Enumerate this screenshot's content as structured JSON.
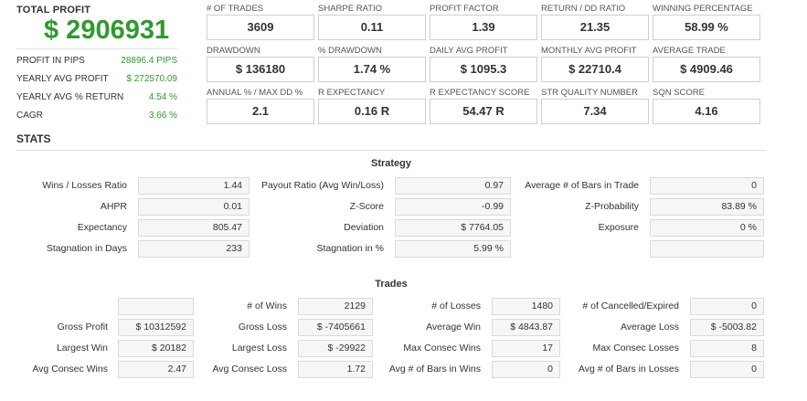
{
  "total_profit": {
    "title": "TOTAL PROFIT",
    "value": "$ 2906931",
    "rows": [
      {
        "label": "PROFIT IN PIPS",
        "value": "28896.4 PIPS"
      },
      {
        "label": "YEARLY AVG PROFIT",
        "value": "$ 272570.09"
      },
      {
        "label": "YEARLY AVG % RETURN",
        "value": "4.54 %"
      },
      {
        "label": "CAGR",
        "value": "3.66 %"
      }
    ]
  },
  "metrics": [
    {
      "label": "# OF TRADES",
      "value": "3609"
    },
    {
      "label": "SHARPE RATIO",
      "value": "0.11"
    },
    {
      "label": "PROFIT FACTOR",
      "value": "1.39"
    },
    {
      "label": "RETURN / DD RATIO",
      "value": "21.35"
    },
    {
      "label": "WINNING PERCENTAGE",
      "value": "58.99 %"
    },
    {
      "label": "DRAWDOWN",
      "value": "$ 136180"
    },
    {
      "label": "% DRAWDOWN",
      "value": "1.74 %"
    },
    {
      "label": "DAILY AVG PROFIT",
      "value": "$ 1095.3"
    },
    {
      "label": "MONTHLY AVG PROFIT",
      "value": "$ 22710.4"
    },
    {
      "label": "AVERAGE TRADE",
      "value": "$ 4909.46"
    },
    {
      "label": "ANNUAL % / MAX DD %",
      "value": "2.1"
    },
    {
      "label": "R EXPECTANCY",
      "value": "0.16 R"
    },
    {
      "label": "R EXPECTANCY SCORE",
      "value": "54.47 R"
    },
    {
      "label": "STR QUALITY NUMBER",
      "value": "7.34"
    },
    {
      "label": "SQN SCORE",
      "value": "4.16"
    }
  ],
  "stats_title": "STATS",
  "strategy": {
    "title": "Strategy",
    "rows": [
      [
        {
          "label": "Wins / Losses Ratio",
          "value": "1.44"
        },
        {
          "label": "Payout Ratio (Avg Win/Loss)",
          "value": "0.97"
        },
        {
          "label": "Average # of Bars in Trade",
          "value": "0"
        }
      ],
      [
        {
          "label": "AHPR",
          "value": "0.01"
        },
        {
          "label": "Z-Score",
          "value": "-0.99"
        },
        {
          "label": "Z-Probability",
          "value": "83.89 %"
        }
      ],
      [
        {
          "label": "Expectancy",
          "value": "805.47"
        },
        {
          "label": "Deviation",
          "value": "$ 7764.05"
        },
        {
          "label": "Exposure",
          "value": "0 %"
        }
      ],
      [
        {
          "label": "Stagnation in Days",
          "value": "233"
        },
        {
          "label": "Stagnation in %",
          "value": "5.99 %"
        },
        {
          "label": "",
          "value": ""
        }
      ]
    ]
  },
  "trades": {
    "title": "Trades",
    "rows": [
      [
        {
          "label": "",
          "value": ""
        },
        {
          "label": "# of Wins",
          "value": "2129"
        },
        {
          "label": "# of Losses",
          "value": "1480"
        },
        {
          "label": "# of Cancelled/Expired",
          "value": "0"
        }
      ],
      [
        {
          "label": "Gross Profit",
          "value": "$ 10312592"
        },
        {
          "label": "Gross Loss",
          "value": "$ -7405661"
        },
        {
          "label": "Average Win",
          "value": "$ 4843.87"
        },
        {
          "label": "Average Loss",
          "value": "$ -5003.82"
        }
      ],
      [
        {
          "label": "Largest Win",
          "value": "$ 20182"
        },
        {
          "label": "Largest Loss",
          "value": "$ -29922"
        },
        {
          "label": "Max Consec Wins",
          "value": "17"
        },
        {
          "label": "Max Consec Losses",
          "value": "8"
        }
      ],
      [
        {
          "label": "Avg Consec Wins",
          "value": "2.47"
        },
        {
          "label": "Avg Consec Loss",
          "value": "1.72"
        },
        {
          "label": "Avg # of Bars in Wins",
          "value": "0"
        },
        {
          "label": "Avg # of Bars in Losses",
          "value": "0"
        }
      ]
    ]
  },
  "colors": {
    "accent_green": "#2e9a2e",
    "text": "#333333",
    "box_border": "#cfcfcf",
    "stat_box_bg": "#f6f6f6"
  }
}
